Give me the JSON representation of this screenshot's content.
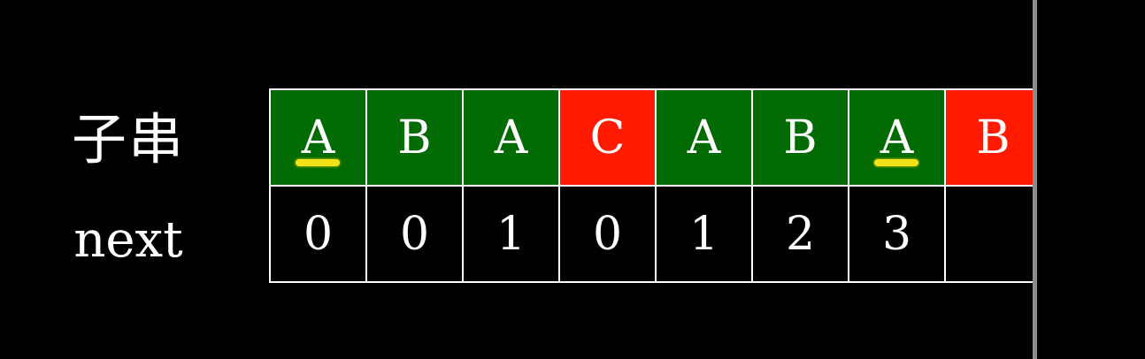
{
  "labels": {
    "substring": "子串",
    "next": "next"
  },
  "colors": {
    "match": "#036b03",
    "mismatch": "#ff1a00",
    "empty": "#000000",
    "highlight": "#f2e21a"
  },
  "chars": [
    {
      "char": "A",
      "state": "match",
      "highlight": true
    },
    {
      "char": "B",
      "state": "match",
      "highlight": false
    },
    {
      "char": "A",
      "state": "match",
      "highlight": false
    },
    {
      "char": "C",
      "state": "mismatch",
      "highlight": false
    },
    {
      "char": "A",
      "state": "match",
      "highlight": false
    },
    {
      "char": "B",
      "state": "match",
      "highlight": false
    },
    {
      "char": "A",
      "state": "match",
      "highlight": true
    },
    {
      "char": "B",
      "state": "mismatch",
      "highlight": false
    }
  ],
  "next": [
    "0",
    "0",
    "1",
    "0",
    "1",
    "2",
    "3",
    ""
  ]
}
